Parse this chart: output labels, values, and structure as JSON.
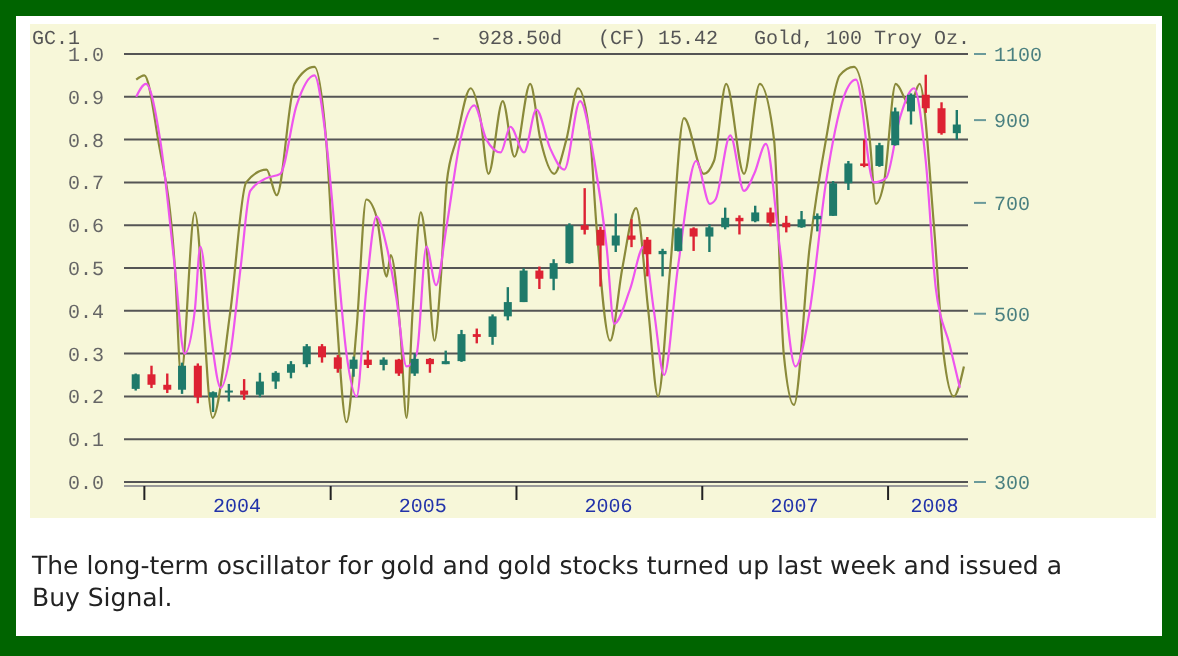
{
  "chart_data": {
    "type": "candlestick",
    "title": "GC.1",
    "subtitle": "-   928.50d   (CF) 15.42   Gold, 100 Troy Oz.",
    "annotations": [
      "The long-term oscillator for gold and gold stocks turned up last week and issued a Buy Signal."
    ],
    "xlim": [
      "2003-11-22",
      "2008-06-06"
    ],
    "xticks": [
      {
        "value": "2004-01-01",
        "label": null
      },
      {
        "value": "2004-07-01",
        "label": "2004"
      },
      {
        "value": "2005-01-01",
        "label": null
      },
      {
        "value": "2005-07-01",
        "label": "2005"
      },
      {
        "value": "2006-01-01",
        "label": null
      },
      {
        "value": "2006-07-01",
        "label": "2006"
      },
      {
        "value": "2007-01-01",
        "label": null
      },
      {
        "value": "2007-07-01",
        "label": "2007"
      },
      {
        "value": "2008-01-01",
        "label": null
      },
      {
        "value": "2008-04-01",
        "label": "2008"
      }
    ],
    "ylim": [
      0,
      1
    ],
    "yticks": [
      {
        "value": 0,
        "label": "0.0"
      },
      {
        "value": 0.1,
        "label": "0.1"
      },
      {
        "value": 0.2,
        "label": "0.2"
      },
      {
        "value": 0.3,
        "label": "0.3"
      },
      {
        "value": 0.4,
        "label": "0.4"
      },
      {
        "value": 0.5,
        "label": "0.5"
      },
      {
        "value": 0.6,
        "label": "0.6"
      },
      {
        "value": 0.7,
        "label": "0.7"
      },
      {
        "value": 0.8,
        "label": "0.8"
      },
      {
        "value": 0.9,
        "label": "0.9"
      },
      {
        "value": 1,
        "label": "1.0"
      }
    ],
    "y2lim": [
      300,
      1100
    ],
    "y2ticks": [
      300,
      500,
      700,
      900,
      1100
    ],
    "log": "y2",
    "grid": "y",
    "line_style": "solid",
    "series": [
      {
        "type": "line",
        "color": "#8a8a3a",
        "x": [
          "2003-12-16",
          "2004-01-01",
          "2004-01-28",
          "2004-03-01",
          "2004-03-13",
          "2004-04-09",
          "2004-05-14",
          "2004-06-18",
          "2004-07-19",
          "2004-08-28",
          "2004-09-17",
          "2004-10-22",
          "2004-11-30",
          "2004-12-23",
          "2005-01-12",
          "2005-02-01",
          "2005-02-21",
          "2005-03-12",
          "2005-04-01",
          "2005-04-21",
          "2005-04-29",
          "2005-05-18",
          "2005-05-30",
          "2005-06-11",
          "2005-06-27",
          "2005-07-08",
          "2005-07-24",
          "2005-08-05",
          "2005-08-17",
          "2005-09-05",
          "2005-10-03",
          "2005-10-22",
          "2005-11-07",
          "2005-12-05",
          "2005-12-28",
          "2006-01-28",
          "2006-02-17",
          "2006-03-16",
          "2006-04-09",
          "2006-05-02",
          "2006-05-26",
          "2006-06-07",
          "2006-07-04",
          "2006-07-28",
          "2006-08-24",
          "2006-09-17",
          "2006-10-06",
          "2006-10-30",
          "2006-11-26",
          "2007-01-04",
          "2007-01-24",
          "2007-02-17",
          "2007-03-24",
          "2007-04-24",
          "2007-05-22",
          "2007-06-10",
          "2007-06-30",
          "2007-07-31",
          "2007-09-01",
          "2007-09-28",
          "2007-10-26",
          "2007-11-26",
          "2007-12-08",
          "2007-12-24",
          "2008-01-16",
          "2008-02-13",
          "2008-03-03",
          "2008-03-31",
          "2008-04-19",
          "2008-05-09",
          "2008-05-29"
        ],
        "values": [
          0.94,
          0.95,
          0.8,
          0.5,
          0.25,
          0.63,
          0.15,
          0.4,
          0.7,
          0.73,
          0.67,
          0.93,
          0.97,
          0.8,
          0.4,
          0.14,
          0.36,
          0.66,
          0.62,
          0.48,
          0.53,
          0.35,
          0.15,
          0.4,
          0.63,
          0.55,
          0.33,
          0.47,
          0.7,
          0.8,
          0.92,
          0.85,
          0.72,
          0.89,
          0.76,
          0.93,
          0.8,
          0.72,
          0.8,
          0.92,
          0.8,
          0.6,
          0.33,
          0.5,
          0.64,
          0.4,
          0.2,
          0.5,
          0.85,
          0.72,
          0.75,
          0.93,
          0.72,
          0.93,
          0.8,
          0.3,
          0.18,
          0.55,
          0.8,
          0.95,
          0.97,
          0.8,
          0.65,
          0.7,
          0.93,
          0.88,
          0.93,
          0.6,
          0.3,
          0.2,
          0.27
        ]
      },
      {
        "type": "line",
        "color": "#ee55ee",
        "x": [
          "2003-12-16",
          "2004-01-04",
          "2004-02-01",
          "2004-03-01",
          "2004-03-20",
          "2004-04-09",
          "2004-04-20",
          "2004-05-10",
          "2004-05-30",
          "2004-06-18",
          "2004-07-08",
          "2004-07-27",
          "2004-08-28",
          "2004-09-24",
          "2004-10-26",
          "2004-11-30",
          "2004-12-23",
          "2005-01-12",
          "2005-02-01",
          "2005-02-21",
          "2005-03-12",
          "2005-04-01",
          "2005-04-21",
          "2005-05-10",
          "2005-05-30",
          "2005-06-19",
          "2005-07-08",
          "2005-07-27",
          "2005-08-17",
          "2005-09-13",
          "2005-10-10",
          "2005-11-03",
          "2005-12-01",
          "2005-12-20",
          "2006-01-16",
          "2006-02-09",
          "2006-03-08",
          "2006-04-05",
          "2006-05-06",
          "2006-06-03",
          "2006-06-27",
          "2006-07-12",
          "2006-08-12",
          "2006-09-08",
          "2006-09-28",
          "2006-10-18",
          "2006-11-14",
          "2006-12-20",
          "2007-01-16",
          "2007-01-27",
          "2007-02-25",
          "2007-03-24",
          "2007-04-13",
          "2007-05-06",
          "2007-06-02",
          "2007-07-03",
          "2007-07-31",
          "2007-09-01",
          "2007-10-06",
          "2007-10-30",
          "2007-12-04",
          "2007-12-28",
          "2008-01-24",
          "2008-02-21",
          "2008-03-15",
          "2008-04-04",
          "2008-05-01",
          "2008-05-21"
        ],
        "values": [
          0.9,
          0.93,
          0.8,
          0.5,
          0.3,
          0.4,
          0.55,
          0.35,
          0.22,
          0.3,
          0.5,
          0.68,
          0.71,
          0.72,
          0.88,
          0.95,
          0.8,
          0.55,
          0.3,
          0.2,
          0.45,
          0.62,
          0.55,
          0.43,
          0.27,
          0.3,
          0.55,
          0.46,
          0.6,
          0.8,
          0.88,
          0.8,
          0.77,
          0.83,
          0.77,
          0.87,
          0.78,
          0.73,
          0.89,
          0.75,
          0.55,
          0.37,
          0.45,
          0.55,
          0.4,
          0.25,
          0.5,
          0.75,
          0.65,
          0.66,
          0.81,
          0.68,
          0.72,
          0.79,
          0.55,
          0.27,
          0.4,
          0.7,
          0.9,
          0.94,
          0.7,
          0.71,
          0.85,
          0.92,
          0.75,
          0.45,
          0.32,
          0.22
        ]
      },
      {
        "axis": "y2",
        "x": [
          "2003-12-15",
          "2004-01-15",
          "2004-02-15",
          "2004-03-15",
          "2004-04-15",
          "2004-05-15",
          "2004-06-15",
          "2004-07-15",
          "2004-08-15",
          "2004-09-15",
          "2004-10-15",
          "2004-11-15",
          "2004-12-15",
          "2005-01-15",
          "2005-02-15",
          "2005-03-15",
          "2005-04-15",
          "2005-05-15",
          "2005-06-15",
          "2005-07-15",
          "2005-08-15",
          "2005-09-15",
          "2005-10-15",
          "2005-11-15",
          "2005-12-15",
          "2006-01-15",
          "2006-02-15",
          "2006-03-15",
          "2006-04-15",
          "2006-05-15",
          "2006-06-15",
          "2006-07-15",
          "2006-08-15",
          "2006-09-15",
          "2006-10-15",
          "2006-11-15",
          "2006-12-15",
          "2007-01-15",
          "2007-02-15",
          "2007-03-15",
          "2007-04-15",
          "2007-05-15",
          "2007-06-15",
          "2007-07-15",
          "2007-08-15",
          "2007-09-15",
          "2007-10-15",
          "2007-11-15",
          "2007-12-15",
          "2008-01-15",
          "2008-02-15",
          "2008-03-15",
          "2008-04-15",
          "2008-05-15"
        ],
        "ohlc": [
          [
            398,
            417,
            396,
            416
          ],
          [
            416,
            427,
            399,
            403
          ],
          [
            403,
            417,
            393,
            397
          ],
          [
            397,
            431,
            392,
            427
          ],
          [
            427,
            430,
            381,
            388
          ],
          [
            388,
            395,
            371,
            394
          ],
          [
            394,
            404,
            383,
            396
          ],
          [
            396,
            410,
            385,
            391
          ],
          [
            391,
            418,
            388,
            407
          ],
          [
            407,
            420,
            398,
            418
          ],
          [
            418,
            433,
            411,
            429
          ],
          [
            429,
            456,
            425,
            453
          ],
          [
            453,
            456,
            431,
            438
          ],
          [
            438,
            441,
            418,
            423
          ],
          [
            423,
            439,
            413,
            435
          ],
          [
            435,
            447,
            424,
            428
          ],
          [
            428,
            438,
            421,
            435
          ],
          [
            435,
            436,
            414,
            417
          ],
          [
            417,
            443,
            414,
            436
          ],
          [
            436,
            437,
            418,
            429
          ],
          [
            429,
            447,
            429,
            433
          ],
          [
            433,
            476,
            432,
            470
          ],
          [
            470,
            478,
            457,
            466
          ],
          [
            466,
            499,
            455,
            496
          ],
          [
            496,
            542,
            490,
            518
          ],
          [
            518,
            574,
            518,
            570
          ],
          [
            570,
            577,
            539,
            556
          ],
          [
            556,
            590,
            537,
            583
          ],
          [
            583,
            658,
            582,
            654
          ],
          [
            654,
            732,
            636,
            645
          ],
          [
            645,
            651,
            543,
            615
          ],
          [
            615,
            678,
            603,
            634
          ],
          [
            634,
            666,
            612,
            626
          ],
          [
            626,
            631,
            560,
            599
          ],
          [
            599,
            609,
            560,
            605
          ],
          [
            605,
            650,
            604,
            648
          ],
          [
            648,
            650,
            605,
            632
          ],
          [
            632,
            656,
            603,
            650
          ],
          [
            650,
            690,
            646,
            669
          ],
          [
            669,
            674,
            636,
            662
          ],
          [
            662,
            694,
            660,
            680
          ],
          [
            680,
            690,
            652,
            659
          ],
          [
            659,
            673,
            640,
            650
          ],
          [
            650,
            683,
            649,
            666
          ],
          [
            666,
            678,
            642,
            673
          ],
          [
            673,
            748,
            673,
            743
          ],
          [
            743,
            795,
            728,
            789
          ],
          [
            789,
            848,
            780,
            783
          ],
          [
            783,
            840,
            781,
            834
          ],
          [
            834,
            935,
            833,
            924
          ],
          [
            924,
            976,
            888,
            972
          ],
          [
            972,
            1033,
            920,
            933
          ],
          [
            933,
            950,
            861,
            865
          ],
          [
            865,
            928,
            848,
            888
          ]
        ],
        "colors": [
          "#1f7a6a",
          "#dd2233",
          "#dd2233",
          "#1f7a6a",
          "#dd2233",
          "#1f7a6a",
          "#1f7a6a",
          "#dd2233",
          "#1f7a6a",
          "#1f7a6a",
          "#1f7a6a",
          "#1f7a6a",
          "#dd2233",
          "#dd2233",
          "#1f7a6a",
          "#dd2233",
          "#1f7a6a",
          "#dd2233",
          "#1f7a6a",
          "#dd2233",
          "#1f7a6a",
          "#1f7a6a",
          "#dd2233",
          "#1f7a6a",
          "#1f7a6a",
          "#1f7a6a",
          "#dd2233",
          "#1f7a6a",
          "#1f7a6a",
          "#dd2233",
          "#dd2233",
          "#1f7a6a",
          "#dd2233",
          "#dd2233",
          "#1f7a6a",
          "#1f7a6a",
          "#dd2233",
          "#1f7a6a",
          "#1f7a6a",
          "#dd2233",
          "#1f7a6a",
          "#dd2233",
          "#dd2233",
          "#1f7a6a",
          "#1f7a6a",
          "#1f7a6a",
          "#1f7a6a",
          "#dd2233",
          "#1f7a6a",
          "#1f7a6a",
          "#1f7a6a",
          "#dd2233",
          "#dd2233",
          "#1f7a6a"
        ]
      }
    ]
  }
}
